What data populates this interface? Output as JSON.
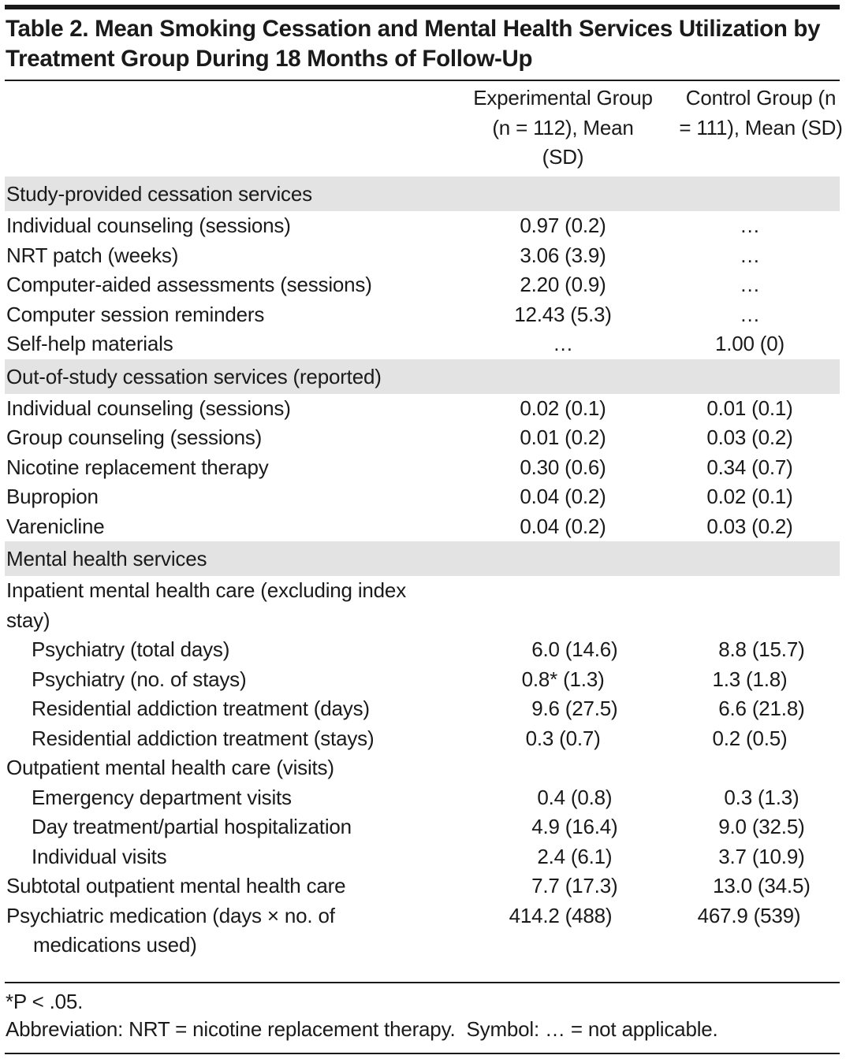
{
  "title": "Table 2. Mean Smoking Cessation and Mental Health Services Utilization by Treatment Group During 18 Months of Follow-Up",
  "columns": [
    "Experimental Group (n = 112), Mean (SD)",
    "Control Group (n = 111), Mean (SD)"
  ],
  "sections": [
    {
      "label": "Study-provided cessation services",
      "rows": [
        {
          "label": "Individual counseling (sessions)",
          "exp": "0.97 (0.2)",
          "ctrl": "…"
        },
        {
          "label": "NRT patch (weeks)",
          "exp": "3.06 (3.9)",
          "ctrl": "…"
        },
        {
          "label": "Computer-aided assessments (sessions)",
          "exp": "2.20 (0.9)",
          "ctrl": "…"
        },
        {
          "label": "Computer session reminders",
          "exp": "12.43 (5.3)",
          "ctrl": "…"
        },
        {
          "label": "Self-help materials",
          "exp": "…",
          "ctrl": "1.00 (0)"
        }
      ]
    },
    {
      "label": "Out-of-study cessation services (reported)",
      "rows": [
        {
          "label": "Individual counseling (sessions)",
          "exp": "0.02 (0.1)",
          "ctrl": "0.01 (0.1)"
        },
        {
          "label": "Group counseling (sessions)",
          "exp": "0.01 (0.2)",
          "ctrl": "0.03 (0.2)"
        },
        {
          "label": "Nicotine replacement therapy",
          "exp": "0.30 (0.6)",
          "ctrl": "0.34 (0.7)"
        },
        {
          "label": "Bupropion",
          "exp": "0.04 (0.2)",
          "ctrl": "0.02 (0.1)"
        },
        {
          "label": "Varenicline",
          "exp": "0.04 (0.2)",
          "ctrl": "0.03 (0.2)"
        }
      ]
    },
    {
      "label": "Mental health services",
      "rows": [
        {
          "label": "Inpatient mental health care (excluding index stay)",
          "exp": "",
          "ctrl": ""
        },
        {
          "label": "Psychiatry (total days)",
          "exp": "6.0 (14.6)",
          "ctrl": "8.8 (15.7)"
        },
        {
          "label": "Psychiatry (no. of stays)",
          "exp": "0.8* (1.3)",
          "ctrl": "1.3 (1.8)"
        },
        {
          "label": "Residential addiction treatment (days)",
          "exp": "9.6 (27.5)",
          "ctrl": "6.6 (21.8)"
        },
        {
          "label": "Residential addiction treatment (stays)",
          "exp": "0.3 (0.7)",
          "ctrl": "0.2 (0.5)"
        },
        {
          "label": "Outpatient mental health care (visits)",
          "exp": "",
          "ctrl": ""
        },
        {
          "label": "Emergency department visits",
          "exp": "0.4 (0.8)",
          "ctrl": "0.3 (1.3)"
        },
        {
          "label": "Day treatment/partial hospitalization",
          "exp": "4.9 (16.4)",
          "ctrl": "9.0 (32.5)"
        },
        {
          "label": "Individual visits",
          "exp": "2.4 (6.1)",
          "ctrl": "3.7 (10.9)"
        },
        {
          "label": "Subtotal outpatient mental health care",
          "exp": "7.7 (17.3)",
          "ctrl": "13.0 (34.5)"
        },
        {
          "label": "Psychiatric medication (days × no. of medications used)",
          "exp": "414.2 (488)",
          "ctrl": "467.9 (539)"
        }
      ]
    }
  ],
  "footnotes": [
    "*P < .05.",
    "Abbreviation: NRT = nicotine replacement therapy.  Symbol: … = not applicable."
  ]
}
